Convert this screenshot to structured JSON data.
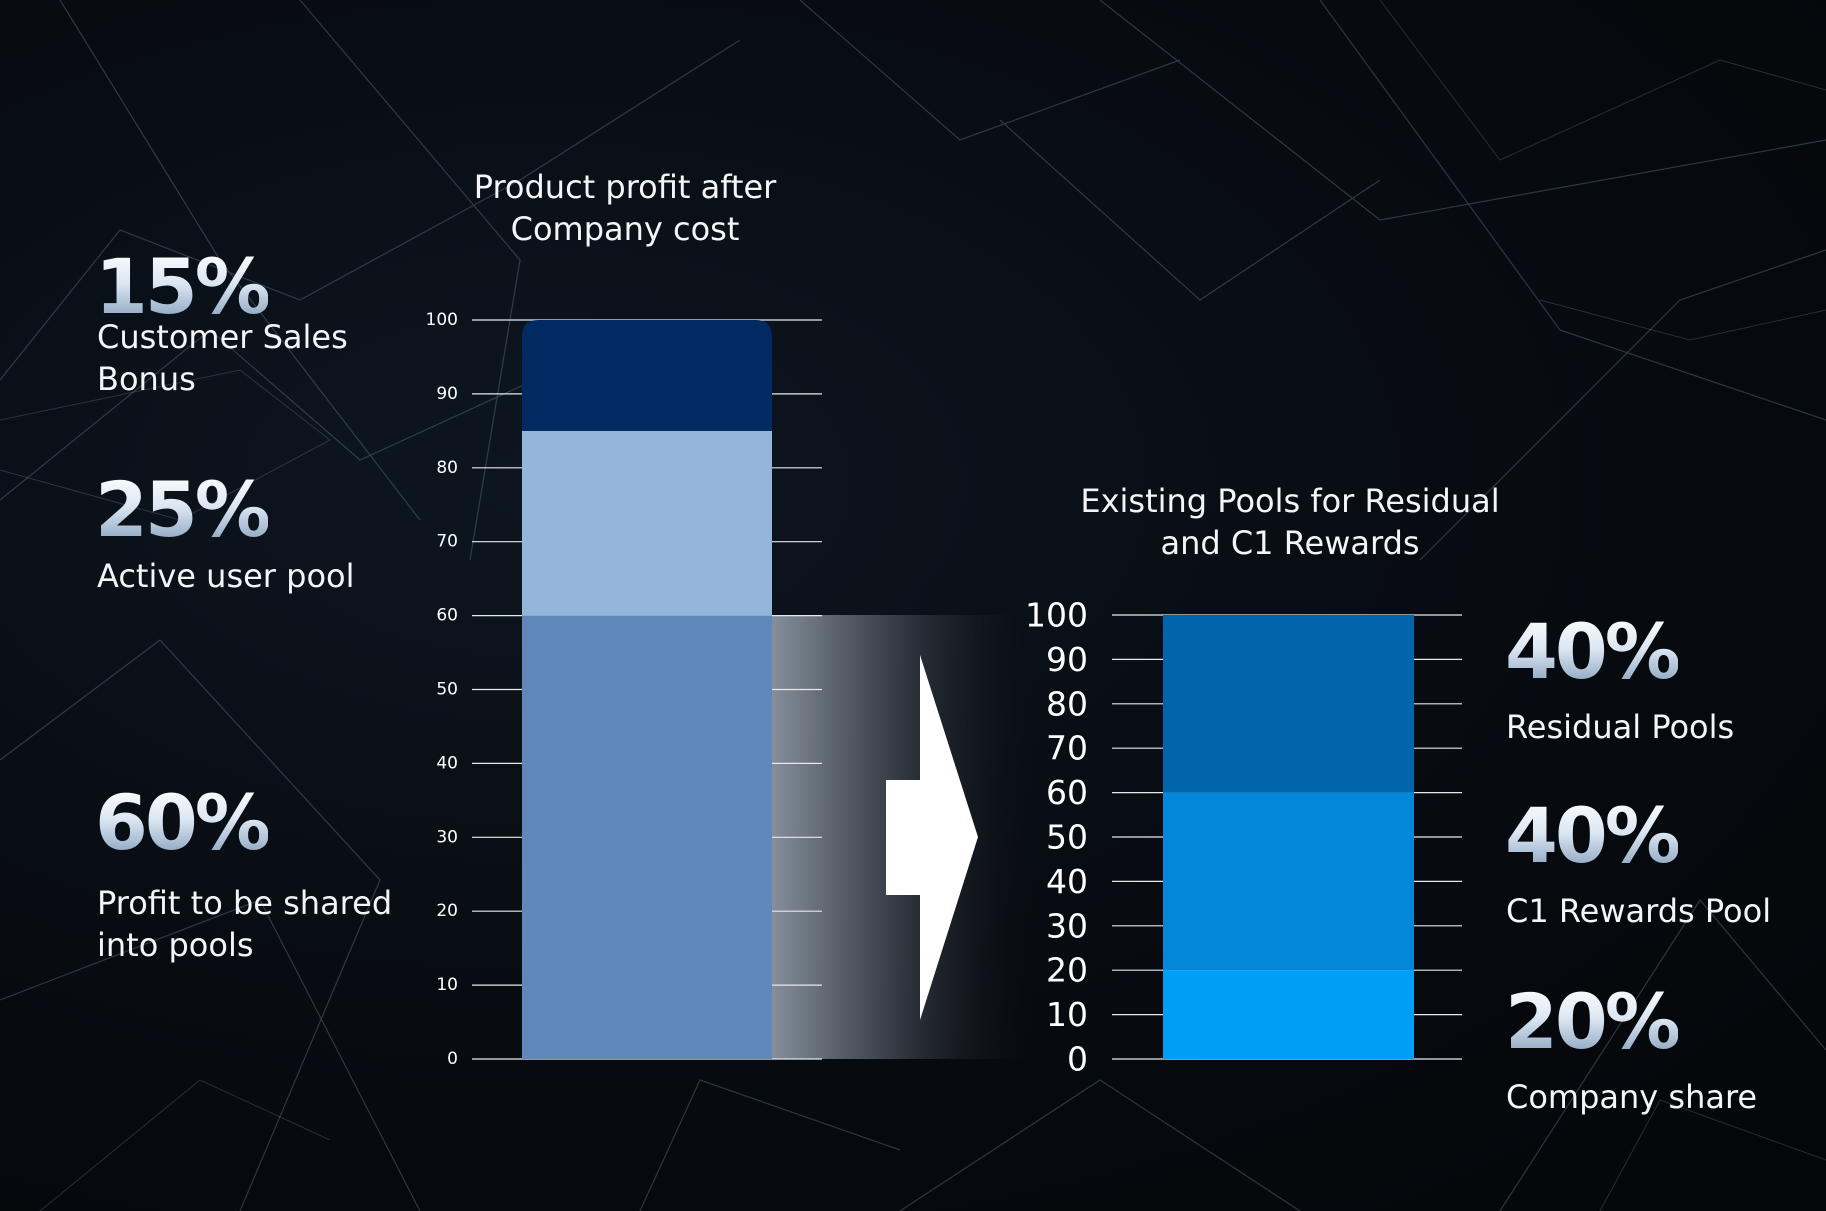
{
  "left_panel": {
    "items": [
      {
        "percent": "15%",
        "label_lines": [
          "Customer Sales",
          "Bonus"
        ]
      },
      {
        "percent": "25%",
        "label_lines": [
          "Active user pool"
        ]
      },
      {
        "percent": "60%",
        "label_lines": [
          "Profit to be shared",
          "into pools"
        ]
      }
    ]
  },
  "right_panel": {
    "items": [
      {
        "percent": "40%",
        "label_lines": [
          "Residual Pools"
        ]
      },
      {
        "percent": "40%",
        "label_lines": [
          "C1 Rewards Pool"
        ]
      },
      {
        "percent": "20%",
        "label_lines": [
          "Company share"
        ]
      }
    ]
  },
  "colors": {
    "left_segments": [
      "#5f87b8",
      "#93b6da",
      "#012a62"
    ],
    "right_segments": [
      "#009ff6",
      "#0387d8",
      "#0165ab"
    ],
    "gridline": "#e6e9ee",
    "arrow": "#ffffff"
  },
  "chart_data": [
    {
      "type": "bar",
      "stacked": true,
      "title_lines": [
        "Product profit after",
        "Company cost"
      ],
      "ylim": [
        0,
        100
      ],
      "yticks": [
        "0",
        "10",
        "20",
        "30",
        "40",
        "50",
        "60",
        "70",
        "80",
        "90",
        "100"
      ],
      "series": [
        {
          "name": "Profit to be shared into pools",
          "values": [
            60
          ]
        },
        {
          "name": "Active user pool",
          "values": [
            25
          ]
        },
        {
          "name": "Customer Sales Bonus",
          "values": [
            15
          ]
        }
      ]
    },
    {
      "type": "bar",
      "stacked": true,
      "title_lines": [
        "Existing Pools for Residual",
        "and C1 Rewards"
      ],
      "ylim": [
        0,
        100
      ],
      "yticks": [
        "0",
        "10",
        "20",
        "30",
        "40",
        "50",
        "60",
        "70",
        "80",
        "90",
        "100"
      ],
      "series": [
        {
          "name": "Company share",
          "values": [
            20
          ]
        },
        {
          "name": "C1 Rewards Pool",
          "values": [
            40
          ]
        },
        {
          "name": "Residual Pools",
          "values": [
            40
          ]
        }
      ]
    }
  ]
}
